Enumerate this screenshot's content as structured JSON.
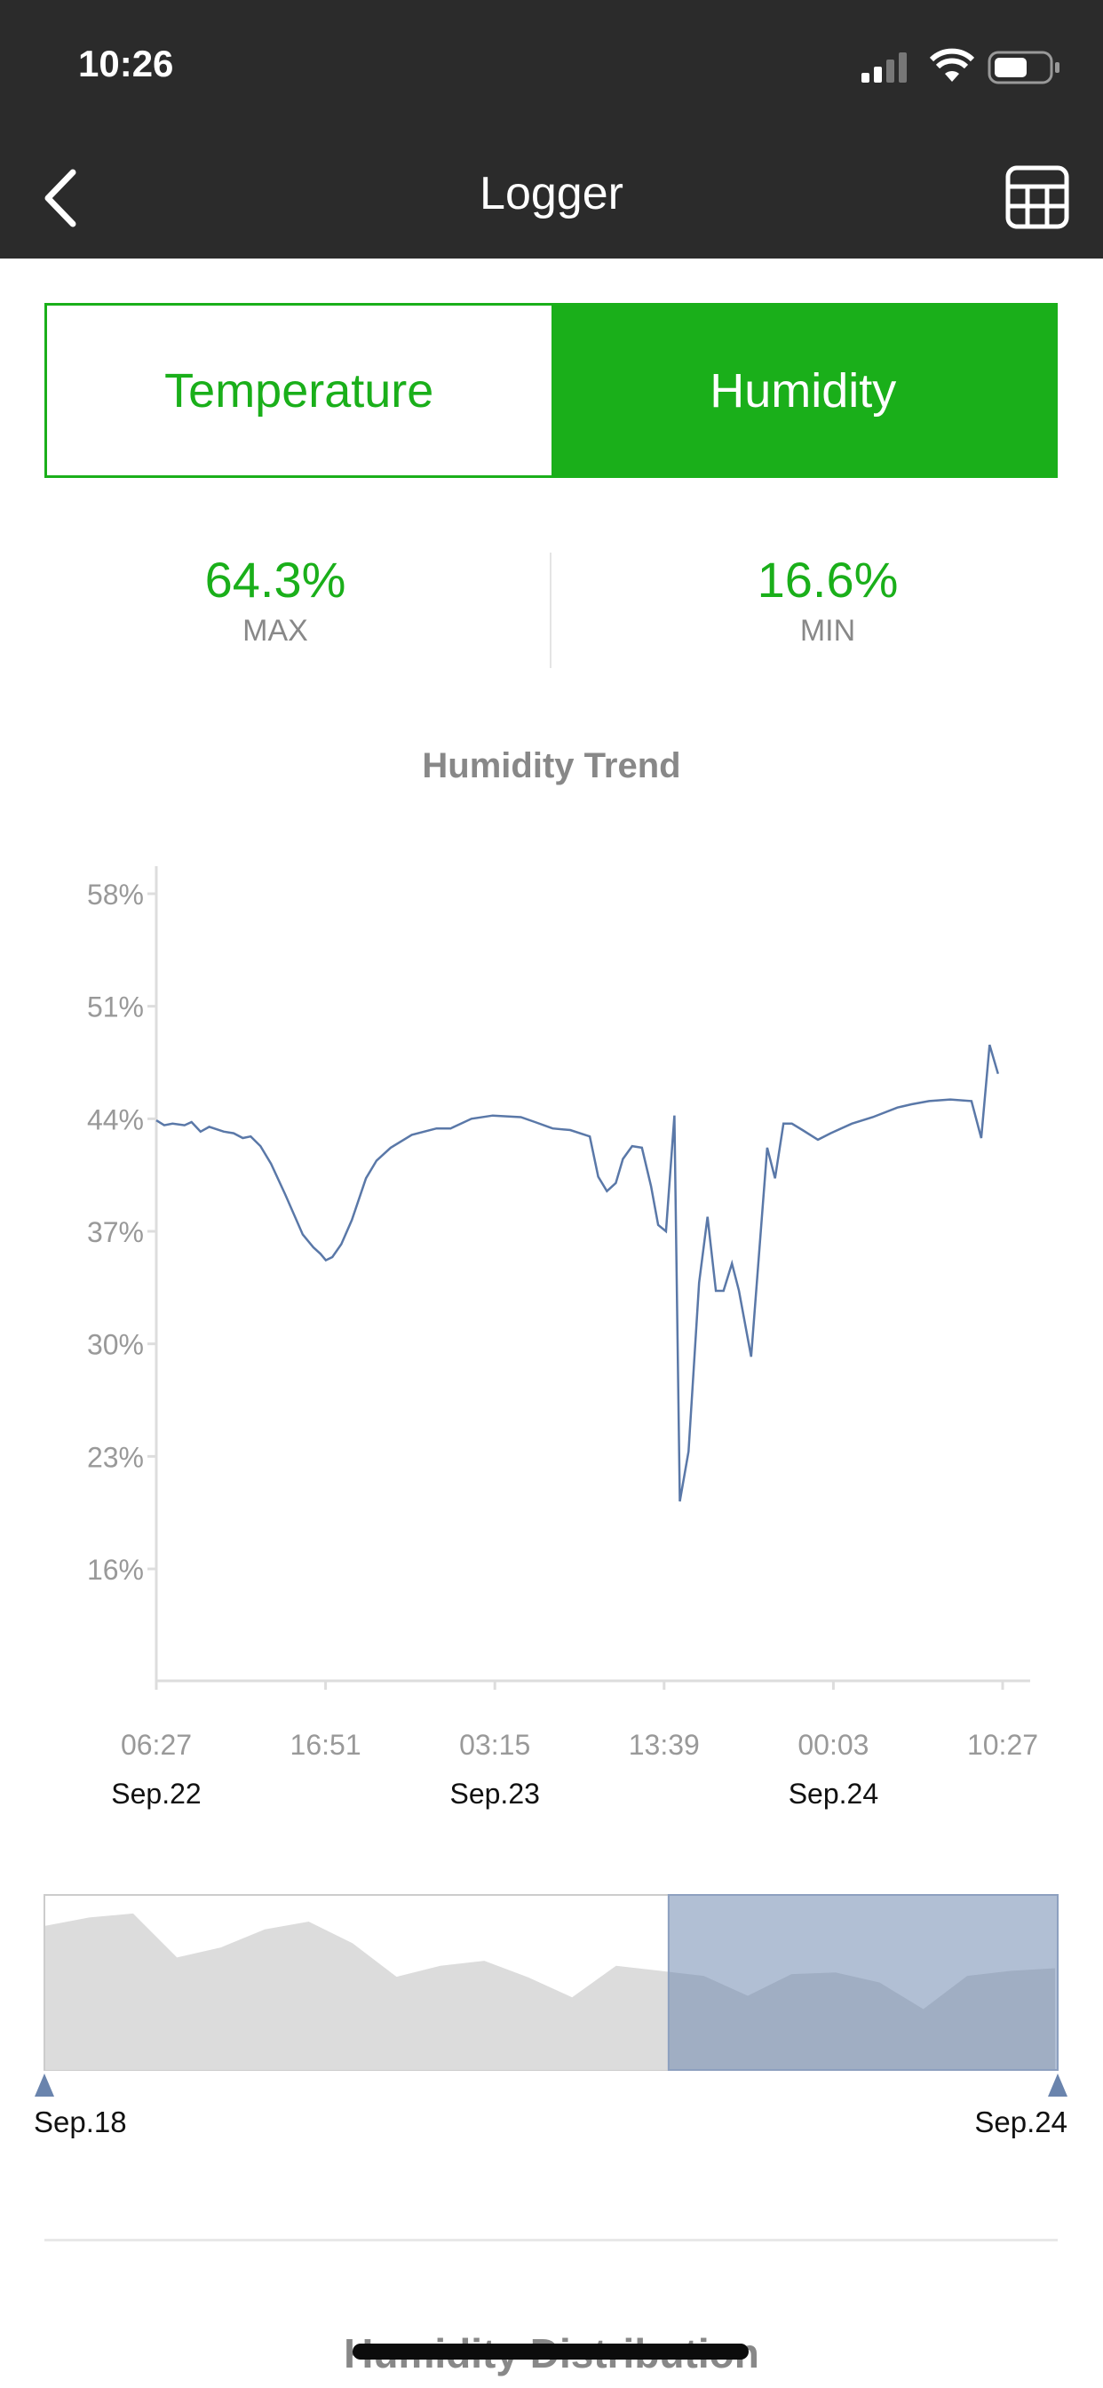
{
  "status_bar": {
    "time": "10:26",
    "icons": [
      "cellular-signal-icon",
      "wifi-icon",
      "battery-icon"
    ]
  },
  "nav": {
    "title": "Logger",
    "back_icon": "chevron-left-icon",
    "table_icon": "table-grid-icon"
  },
  "tabs": [
    {
      "label": "Temperature",
      "selected": false
    },
    {
      "label": "Humidity",
      "selected": true
    }
  ],
  "colors": {
    "accent": "#1aaf1a",
    "line": "#5a78a8",
    "nav_bg": "#2b2b2b"
  },
  "stats": {
    "max": {
      "value": "64.3%",
      "label": "MAX"
    },
    "min": {
      "value": "16.6%",
      "label": "MIN"
    }
  },
  "chart_title": "Humidity Trend",
  "chart_data": {
    "type": "line",
    "title": "Humidity Trend",
    "ylim": [
      9.1,
      59.7
    ],
    "y_ticks": [
      "58%",
      "51%",
      "44%",
      "37%",
      "30%",
      "23%",
      "16%"
    ],
    "y_tick_values": [
      58,
      51,
      44,
      37,
      30,
      23,
      16
    ],
    "x_ticks": [
      {
        "time": "06:27",
        "date": "Sep.22",
        "at": "09-22 06:27"
      },
      {
        "time": "16:51",
        "date": "",
        "at": "09-22 16:51"
      },
      {
        "time": "03:15",
        "date": "Sep.23",
        "at": "09-23 03:15"
      },
      {
        "time": "13:39",
        "date": "",
        "at": "09-23 13:39"
      },
      {
        "time": "00:03",
        "date": "Sep.24",
        "at": "09-24 00:03"
      },
      {
        "time": "10:27",
        "date": "",
        "at": "09-24 10:27"
      }
    ],
    "grid": false,
    "series": [
      {
        "points": [
          [
            "09-22 06:27",
            43.9
          ],
          [
            "09-22 06:56",
            43.6
          ],
          [
            "09-22 07:27",
            43.7
          ],
          [
            "09-22 08:11",
            43.6
          ],
          [
            "09-22 08:37",
            43.8
          ],
          [
            "09-22 09:10",
            43.2
          ],
          [
            "09-22 09:42",
            43.5
          ],
          [
            "09-22 10:36",
            43.2
          ],
          [
            "09-22 11:12",
            43.1
          ],
          [
            "09-22 11:46",
            42.8
          ],
          [
            "09-22 12:15",
            42.9
          ],
          [
            "09-22 12:51",
            42.3
          ],
          [
            "09-22 13:30",
            41.2
          ],
          [
            "09-22 14:22",
            39.3
          ],
          [
            "09-22 15:27",
            36.8
          ],
          [
            "09-22 16:06",
            36.0
          ],
          [
            "09-22 16:32",
            35.6
          ],
          [
            "09-22 16:52",
            35.2
          ],
          [
            "09-22 17:16",
            35.4
          ],
          [
            "09-22 17:49",
            36.2
          ],
          [
            "09-22 18:28",
            37.7
          ],
          [
            "09-22 19:20",
            40.3
          ],
          [
            "09-22 19:59",
            41.4
          ],
          [
            "09-22 20:51",
            42.2
          ],
          [
            "09-22 22:09",
            43.0
          ],
          [
            "09-22 23:40",
            43.4
          ],
          [
            "09-23 00:32",
            43.4
          ],
          [
            "09-23 01:49",
            44.0
          ],
          [
            "09-23 03:07",
            44.2
          ],
          [
            "09-23 04:51",
            44.1
          ],
          [
            "09-23 05:43",
            43.8
          ],
          [
            "09-23 06:48",
            43.4
          ],
          [
            "09-23 07:53",
            43.3
          ],
          [
            "09-23 09:05",
            42.9
          ],
          [
            "09-23 09:36",
            40.4
          ],
          [
            "09-23 10:08",
            39.5
          ],
          [
            "09-23 10:41",
            40.0
          ],
          [
            "09-23 11:07",
            41.5
          ],
          [
            "09-23 11:41",
            42.3
          ],
          [
            "09-23 12:17",
            42.2
          ],
          [
            "09-23 12:51",
            39.8
          ],
          [
            "09-23 13:17",
            37.4
          ],
          [
            "09-23 13:46",
            37.0
          ],
          [
            "09-23 14:17",
            44.2
          ],
          [
            "09-23 14:37",
            20.2
          ],
          [
            "09-23 15:09",
            23.3
          ],
          [
            "09-23 15:48",
            33.8
          ],
          [
            "09-23 16:19",
            37.9
          ],
          [
            "09-23 16:50",
            33.3
          ],
          [
            "09-23 17:18",
            33.3
          ],
          [
            "09-23 17:49",
            35.0
          ],
          [
            "09-23 18:15",
            33.3
          ],
          [
            "09-23 19:00",
            29.2
          ],
          [
            "09-23 19:59",
            42.2
          ],
          [
            "09-23 20:28",
            40.3
          ],
          [
            "09-23 20:59",
            43.7
          ],
          [
            "09-23 21:30",
            43.7
          ],
          [
            "09-23 22:09",
            43.3
          ],
          [
            "09-23 23:06",
            42.7
          ],
          [
            "09-23 23:53",
            43.1
          ],
          [
            "09-24 01:11",
            43.7
          ],
          [
            "09-24 02:28",
            44.1
          ],
          [
            "09-24 03:59",
            44.7
          ],
          [
            "09-24 04:51",
            44.9
          ],
          [
            "09-24 05:56",
            45.1
          ],
          [
            "09-24 07:14",
            45.2
          ],
          [
            "09-24 08:32",
            45.1
          ],
          [
            "09-24 09:08",
            42.8
          ],
          [
            "09-24 09:39",
            48.6
          ],
          [
            "09-24 10:10",
            46.8
          ]
        ]
      }
    ]
  },
  "navigator": {
    "start_label": "Sep.18",
    "end_label": "Sep.24",
    "selected_fraction": [
      0.616,
      1.0
    ],
    "values": [
      65.9,
      69.7,
      71.5,
      51.4,
      56.0,
      64.3,
      67.8,
      57.9,
      42.6,
      47.6,
      49.9,
      42.3,
      33.2,
      47.6,
      45.3,
      43.0,
      33.9,
      43.8,
      44.6,
      40.0,
      27.8,
      43.0,
      45.3,
      46.5
    ]
  },
  "next_section_title": "Humidity Distribution"
}
